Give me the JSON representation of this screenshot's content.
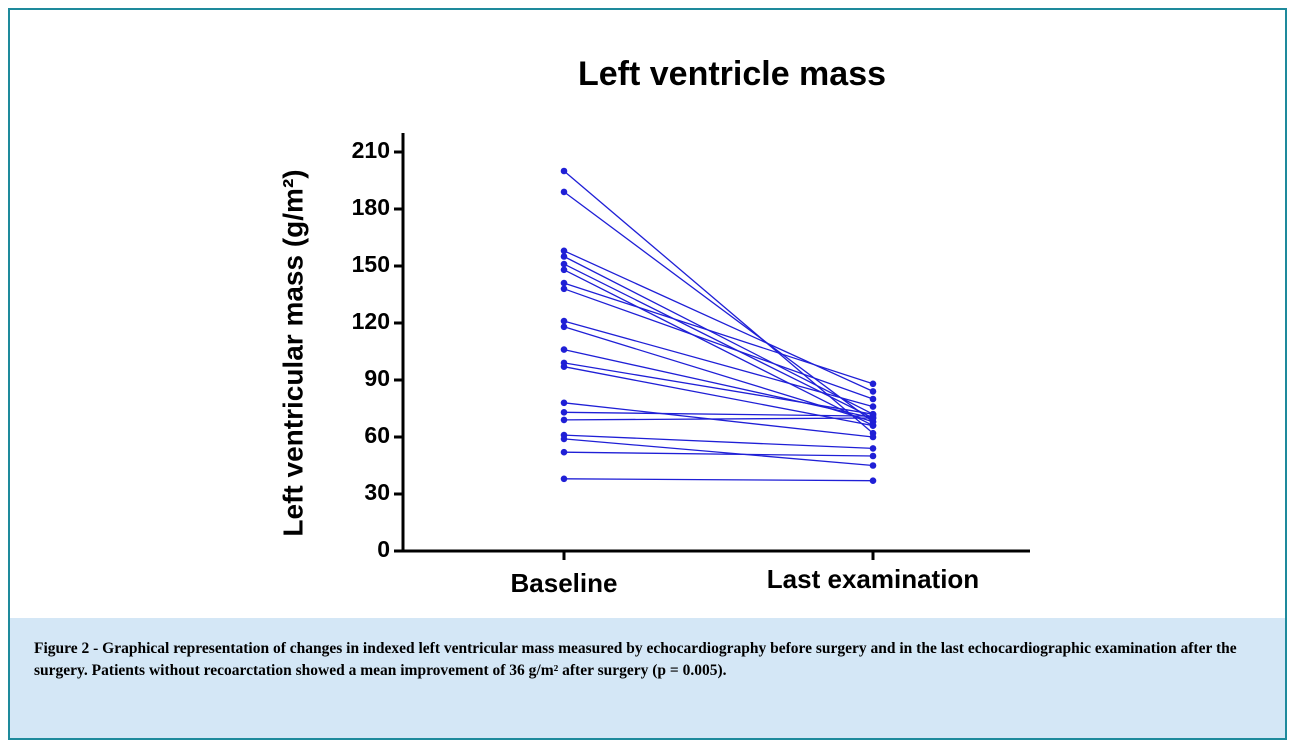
{
  "chart_data": {
    "type": "paired-dot",
    "title": "Left ventricle mass",
    "y_label": "Left ventricular mass (g/m²)",
    "categories": [
      "Baseline",
      "Last examination"
    ],
    "color": "#1f1fd6",
    "ylim": [
      0,
      220
    ],
    "yticks": [
      0,
      30,
      60,
      90,
      120,
      150,
      180,
      210
    ],
    "series": [
      {
        "values": [
          200,
          62
        ]
      },
      {
        "values": [
          189,
          68
        ]
      },
      {
        "values": [
          158,
          84
        ]
      },
      {
        "values": [
          155,
          72
        ]
      },
      {
        "values": [
          151,
          70
        ]
      },
      {
        "values": [
          148,
          66
        ]
      },
      {
        "values": [
          141,
          88
        ]
      },
      {
        "values": [
          138,
          80
        ]
      },
      {
        "values": [
          121,
          76
        ]
      },
      {
        "values": [
          118,
          68
        ]
      },
      {
        "values": [
          106,
          70
        ]
      },
      {
        "values": [
          99,
          72
        ]
      },
      {
        "values": [
          97,
          66
        ]
      },
      {
        "values": [
          78,
          60
        ]
      },
      {
        "values": [
          73,
          71
        ]
      },
      {
        "values": [
          69,
          70
        ]
      },
      {
        "values": [
          61,
          54
        ]
      },
      {
        "values": [
          59,
          45
        ]
      },
      {
        "values": [
          52,
          50
        ]
      },
      {
        "values": [
          38,
          37
        ]
      }
    ]
  },
  "caption": "Figure 2 - Graphical representation of changes in indexed left ventricular mass measured by echocardiography before surgery and in the last echocardiographic examination after the surgery. Patients without recoarctation showed a mean improvement of 36 g/m² after surgery (p = 0.005)."
}
